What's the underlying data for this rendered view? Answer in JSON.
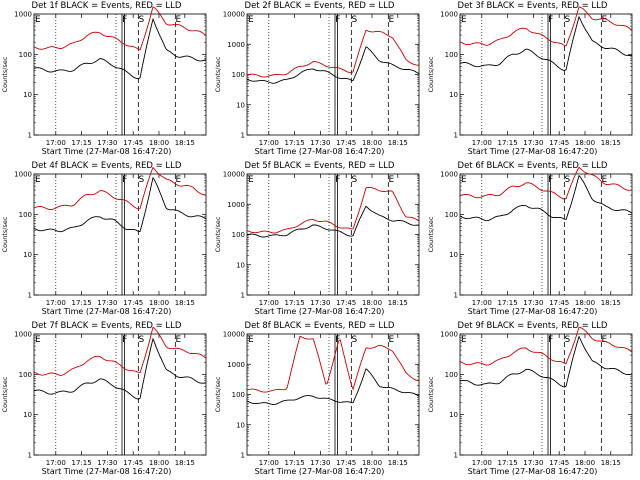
{
  "chart_data": [
    {
      "id": 1,
      "title": "Det 1f BLACK = Events, RED = LLD",
      "xlabel": "Start Time (27-Mar-08 16:47:20)",
      "ylabel": "Counts/sec",
      "type": "line",
      "yscale": "log",
      "ylim": [
        1,
        1000
      ],
      "xlim": [
        "16:47:20",
        "18:27:20"
      ],
      "x_ticks": [
        "17:00",
        "17:15",
        "17:30",
        "17:45",
        "18:00",
        "18:15"
      ],
      "y_ticks": [
        "1",
        "10",
        "100",
        "1000"
      ],
      "markers": [
        "E",
        "F",
        "S",
        "E"
      ],
      "series": [
        {
          "color": "#000000",
          "values": [
            45,
            40,
            38,
            42,
            60,
            75,
            55,
            35,
            25,
            800,
            120,
            90,
            80,
            70
          ]
        },
        {
          "color": "#cc0000",
          "values": [
            150,
            140,
            150,
            180,
            300,
            350,
            250,
            180,
            120,
            1500,
            600,
            500,
            400,
            300
          ]
        }
      ]
    },
    {
      "id": 2,
      "title": "Det 2f BLACK = Events, RED = LLD",
      "xlabel": "Start Time (27-Mar-08 16:47:20)",
      "ylabel": "Counts/sec",
      "type": "line",
      "yscale": "log",
      "ylim": [
        1,
        10000
      ],
      "xlim": [
        "16:47:20",
        "18:27:20"
      ],
      "x_ticks": [
        "17:00",
        "17:15",
        "17:30",
        "17:45",
        "18:00",
        "18:15"
      ],
      "y_ticks": [
        "1",
        "10",
        "100",
        "1000",
        "10000"
      ],
      "markers": [
        "E",
        "F",
        "S",
        "E"
      ],
      "series": [
        {
          "color": "#000000",
          "values": [
            70,
            60,
            55,
            65,
            110,
            160,
            120,
            80,
            60,
            800,
            300,
            200,
            150,
            110
          ]
        },
        {
          "color": "#cc0000",
          "values": [
            100,
            90,
            90,
            110,
            180,
            260,
            200,
            150,
            120,
            3000,
            2500,
            1800,
            300,
            200
          ]
        }
      ]
    },
    {
      "id": 3,
      "title": "Det 3f BLACK = Events, RED = LLD",
      "xlabel": "Start Time (27-Mar-08 16:47:20)",
      "ylabel": "Counts/sec",
      "type": "line",
      "yscale": "log",
      "ylim": [
        1,
        1000
      ],
      "xlim": [
        "16:47:20",
        "18:27:20"
      ],
      "x_ticks": [
        "17:00",
        "17:15",
        "17:30",
        "17:45",
        "18:00",
        "18:15"
      ],
      "y_ticks": [
        "1",
        "10",
        "100",
        "1000"
      ],
      "markers": [
        "E",
        "F",
        "S",
        "E"
      ],
      "series": [
        {
          "color": "#000000",
          "values": [
            60,
            55,
            50,
            60,
            100,
            130,
            90,
            60,
            40,
            900,
            200,
            150,
            120,
            90
          ]
        },
        {
          "color": "#cc0000",
          "values": [
            200,
            180,
            180,
            220,
            350,
            450,
            300,
            220,
            150,
            1500,
            800,
            700,
            550,
            400
          ]
        }
      ]
    },
    {
      "id": 4,
      "title": "Det 4f BLACK = Events, RED = LLD",
      "xlabel": "Start Time (27-Mar-08 16:47:20)",
      "ylabel": "Counts/sec",
      "type": "line",
      "yscale": "log",
      "ylim": [
        1,
        1000
      ],
      "xlim": [
        "16:47:20",
        "18:27:20"
      ],
      "x_ticks": [
        "17:00",
        "17:15",
        "17:30",
        "17:45",
        "18:00",
        "18:15"
      ],
      "y_ticks": [
        "1",
        "10",
        "100",
        "1000"
      ],
      "markers": [
        "E",
        "F",
        "S",
        "E"
      ],
      "series": [
        {
          "color": "#000000",
          "values": [
            45,
            40,
            40,
            45,
            70,
            90,
            70,
            45,
            35,
            800,
            150,
            110,
            90,
            80
          ]
        },
        {
          "color": "#cc0000",
          "values": [
            150,
            140,
            150,
            180,
            300,
            380,
            280,
            200,
            140,
            1500,
            700,
            550,
            450,
            300
          ]
        }
      ]
    },
    {
      "id": 5,
      "title": "Det 5f BLACK = Events, RED = LLD",
      "xlabel": "Start Time (27-Mar-08 16:47:20)",
      "ylabel": "Counts/sec",
      "type": "line",
      "yscale": "log",
      "ylim": [
        1,
        10000
      ],
      "xlim": [
        "16:47:20",
        "18:27:20"
      ],
      "x_ticks": [
        "17:00",
        "17:15",
        "17:30",
        "17:45",
        "18:00",
        "18:15"
      ],
      "y_ticks": [
        "1",
        "10",
        "100",
        "1000",
        "10000"
      ],
      "markers": [
        "E",
        "F",
        "S",
        "E"
      ],
      "series": [
        {
          "color": "#000000",
          "values": [
            100,
            90,
            90,
            100,
            150,
            200,
            160,
            120,
            90,
            900,
            400,
            300,
            250,
            200
          ]
        },
        {
          "color": "#cc0000",
          "values": [
            130,
            120,
            120,
            140,
            220,
            320,
            260,
            180,
            140,
            3500,
            3000,
            2500,
            400,
            280
          ]
        }
      ]
    },
    {
      "id": 6,
      "title": "Det 6f BLACK = Events, RED = LLD",
      "xlabel": "Start Time (27-Mar-08 16:47:20)",
      "ylabel": "Counts/sec",
      "type": "line",
      "yscale": "log",
      "ylim": [
        1,
        1000
      ],
      "xlim": [
        "16:47:20",
        "18:27:20"
      ],
      "x_ticks": [
        "17:00",
        "17:15",
        "17:30",
        "17:45",
        "18:00",
        "18:15"
      ],
      "y_ticks": [
        "1",
        "10",
        "100",
        "1000"
      ],
      "markers": [
        "E",
        "F",
        "S",
        "E"
      ],
      "series": [
        {
          "color": "#000000",
          "values": [
            90,
            80,
            75,
            85,
            130,
            170,
            130,
            90,
            70,
            900,
            250,
            150,
            130,
            110
          ]
        },
        {
          "color": "#cc0000",
          "values": [
            300,
            280,
            280,
            320,
            480,
            600,
            450,
            330,
            250,
            1500,
            900,
            600,
            500,
            400
          ]
        }
      ]
    },
    {
      "id": 7,
      "title": "Det 7f BLACK = Events, RED = LLD",
      "xlabel": "Start Time (27-Mar-08 16:47:20)",
      "ylabel": "Counts/sec",
      "type": "line",
      "yscale": "log",
      "ylim": [
        1,
        1000
      ],
      "xlim": [
        "16:47:20",
        "18:27:20"
      ],
      "x_ticks": [
        "17:00",
        "17:15",
        "17:30",
        "17:45",
        "18:00",
        "18:15"
      ],
      "y_ticks": [
        "1",
        "10",
        "100",
        "1000"
      ],
      "markers": [
        "E",
        "F",
        "S",
        "E"
      ],
      "series": [
        {
          "color": "#000000",
          "values": [
            40,
            35,
            35,
            40,
            60,
            75,
            55,
            35,
            25,
            800,
            120,
            90,
            75,
            60
          ]
        },
        {
          "color": "#cc0000",
          "values": [
            110,
            100,
            100,
            130,
            220,
            280,
            200,
            140,
            100,
            1500,
            500,
            400,
            350,
            250
          ]
        }
      ]
    },
    {
      "id": 8,
      "title": "Det 8f BLACK = Events, RED = LLD",
      "xlabel": "Start Time (27-Mar-08 16:47:20)",
      "ylabel": "Counts/sec",
      "type": "line",
      "yscale": "log",
      "ylim": [
        1,
        10000
      ],
      "xlim": [
        "16:47:20",
        "18:27:20"
      ],
      "x_ticks": [
        "17:00",
        "17:15",
        "17:30",
        "17:45",
        "18:00",
        "18:15"
      ],
      "y_ticks": [
        "1",
        "10",
        "100",
        "1000",
        "10000"
      ],
      "markers": [
        "E",
        "F",
        "S",
        "E"
      ],
      "series": [
        {
          "color": "#000000",
          "values": [
            60,
            50,
            50,
            60,
            80,
            90,
            70,
            60,
            50,
            700,
            200,
            150,
            120,
            90
          ]
        },
        {
          "color": "#cc0000",
          "values": [
            150,
            130,
            130,
            160,
            8000,
            7000,
            200,
            7000,
            150,
            3500,
            4000,
            3000,
            500,
            280
          ]
        }
      ]
    },
    {
      "id": 9,
      "title": "Det 9f BLACK = Events, RED = LLD",
      "xlabel": "Start Time (27-Mar-08 16:47:20)",
      "ylabel": "Counts/sec",
      "type": "line",
      "yscale": "log",
      "ylim": [
        1,
        1000
      ],
      "xlim": [
        "16:47:20",
        "18:27:20"
      ],
      "x_ticks": [
        "17:00",
        "17:15",
        "17:30",
        "17:45",
        "18:00",
        "18:15"
      ],
      "y_ticks": [
        "1",
        "10",
        "100",
        "1000"
      ],
      "markers": [
        "E",
        "F",
        "S",
        "E"
      ],
      "series": [
        {
          "color": "#000000",
          "values": [
            70,
            60,
            55,
            65,
            100,
            130,
            100,
            70,
            50,
            900,
            200,
            150,
            120,
            100
          ]
        },
        {
          "color": "#cc0000",
          "values": [
            200,
            180,
            180,
            220,
            350,
            450,
            330,
            240,
            170,
            1500,
            800,
            600,
            500,
            350
          ]
        }
      ]
    }
  ]
}
